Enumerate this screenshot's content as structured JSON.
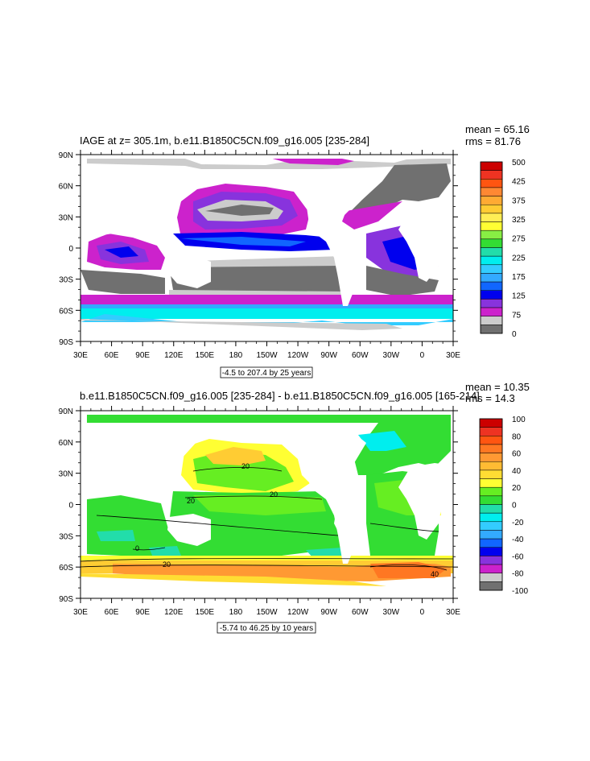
{
  "panel1": {
    "title": "IAGE at z= 305.1m, b.e11.B1850C5CN.f09_g16.005 [235-284]",
    "mean": "mean = 65.16",
    "rms": "rms = 81.76",
    "info": "-4.5 to 207.4 by 25 years",
    "colorbar_labels": [
      "500",
      "425",
      "375",
      "325",
      "275",
      "225",
      "175",
      "125",
      "75",
      "0"
    ],
    "colorbar_colors": [
      "#cc0000",
      "#ee3322",
      "#ff5511",
      "#ff8833",
      "#ffaa33",
      "#ffcc33",
      "#ffee55",
      "#ffff33",
      "#88ee44",
      "#33dd33",
      "#22ddaa",
      "#00eeee",
      "#33ccff",
      "#33aaff",
      "#1166ff",
      "#0000ee",
      "#8833dd",
      "#cc22cc",
      "#cccccc",
      "#707070"
    ]
  },
  "panel2": {
    "title": "b.e11.B1850C5CN.f09_g16.005 [235-284] - b.e11.B1850C5CN.f09_g16.005 [165-214]",
    "mean": "mean = 10.35",
    "rms": "rms = 14.3",
    "info": "-5.74 to 46.25 by 10 years",
    "colorbar_labels": [
      "100",
      "80",
      "60",
      "40",
      "20",
      "0",
      "-20",
      "-40",
      "-60",
      "-80",
      "-100"
    ],
    "colorbar_colors": [
      "#cc0000",
      "#ee3322",
      "#ff5511",
      "#ff7722",
      "#ff9933",
      "#ffbb33",
      "#ffdd33",
      "#ffff33",
      "#66ee22",
      "#33dd33",
      "#22ddaa",
      "#00eeee",
      "#33ccff",
      "#33aaff",
      "#1166ff",
      "#0000ee",
      "#8833dd",
      "#cc22cc",
      "#cccccc",
      "#707070"
    ],
    "contour_labels": [
      "20",
      "20",
      "20",
      "0",
      "20",
      "40"
    ]
  },
  "axes": {
    "lon_labels": [
      "30E",
      "60E",
      "90E",
      "120E",
      "150E",
      "180",
      "150W",
      "120W",
      "90W",
      "60W",
      "30W",
      "0",
      "30E"
    ],
    "lat_labels": [
      "90N",
      "60N",
      "30N",
      "0",
      "30S",
      "60S",
      "90S"
    ]
  }
}
